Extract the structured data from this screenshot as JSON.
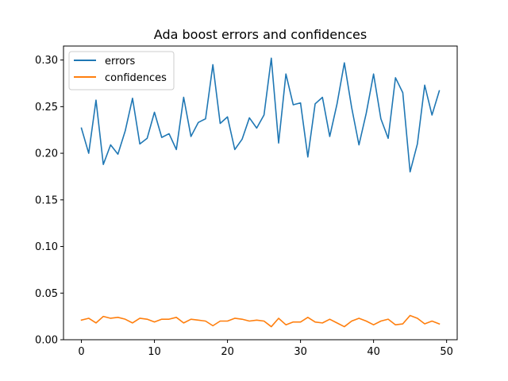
{
  "chart_data": {
    "type": "line",
    "title": "Ada boost errors and confidences",
    "xlabel": "",
    "ylabel": "",
    "xlim": [
      -2.45,
      51.45
    ],
    "ylim": [
      0,
      0.315
    ],
    "xticks": [
      0,
      10,
      20,
      30,
      40,
      50
    ],
    "yticks": [
      0.0,
      0.05,
      0.1,
      0.15,
      0.2,
      0.25,
      0.3
    ],
    "ytick_labels": [
      "0.00",
      "0.05",
      "0.10",
      "0.15",
      "0.20",
      "0.25",
      "0.30"
    ],
    "grid": false,
    "legend_position": "upper-left",
    "x": [
      0,
      1,
      2,
      3,
      4,
      5,
      6,
      7,
      8,
      9,
      10,
      11,
      12,
      13,
      14,
      15,
      16,
      17,
      18,
      19,
      20,
      21,
      22,
      23,
      24,
      25,
      26,
      27,
      28,
      29,
      30,
      31,
      32,
      33,
      34,
      35,
      36,
      37,
      38,
      39,
      40,
      41,
      42,
      43,
      44,
      45,
      46,
      47,
      48,
      49
    ],
    "series": [
      {
        "name": "errors",
        "color": "#1f77b4",
        "values": [
          0.227,
          0.2,
          0.257,
          0.188,
          0.209,
          0.199,
          0.224,
          0.259,
          0.21,
          0.216,
          0.244,
          0.217,
          0.221,
          0.204,
          0.26,
          0.218,
          0.233,
          0.237,
          0.295,
          0.232,
          0.239,
          0.204,
          0.215,
          0.238,
          0.227,
          0.241,
          0.302,
          0.211,
          0.285,
          0.252,
          0.254,
          0.196,
          0.253,
          0.26,
          0.218,
          0.253,
          0.297,
          0.249,
          0.209,
          0.243,
          0.285,
          0.237,
          0.216,
          0.281,
          0.265,
          0.18,
          0.21,
          0.273,
          0.241,
          0.267
        ]
      },
      {
        "name": "confidences",
        "color": "#ff7f0e",
        "values": [
          0.021,
          0.023,
          0.018,
          0.025,
          0.023,
          0.024,
          0.022,
          0.018,
          0.023,
          0.022,
          0.019,
          0.022,
          0.022,
          0.024,
          0.018,
          0.022,
          0.021,
          0.02,
          0.015,
          0.02,
          0.02,
          0.023,
          0.022,
          0.02,
          0.021,
          0.02,
          0.014,
          0.023,
          0.016,
          0.019,
          0.019,
          0.024,
          0.019,
          0.018,
          0.022,
          0.018,
          0.014,
          0.02,
          0.023,
          0.02,
          0.016,
          0.02,
          0.022,
          0.016,
          0.017,
          0.026,
          0.023,
          0.017,
          0.02,
          0.017
        ]
      }
    ]
  }
}
